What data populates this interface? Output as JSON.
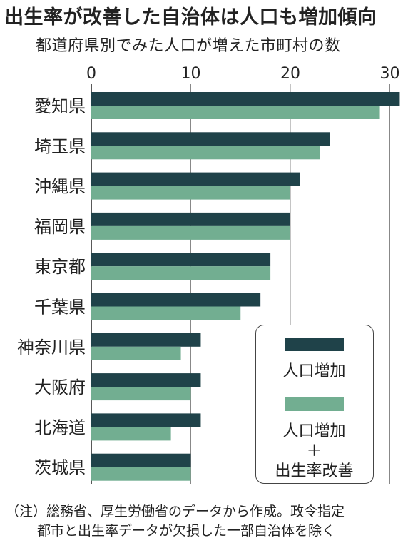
{
  "title": "出生率が改善した自治体は人口も増加傾向",
  "subtitle": "都道府県別でみた人口が増えた市町村の数",
  "note_line1": "（注）総務省、厚生労働省のデータから作成。政令指定",
  "note_line2": "都市と出生率データが欠損した一部自治体を除く",
  "colors": {
    "dark": "#1f4249",
    "green": "#72ae91",
    "grid": "#888888"
  },
  "legend": {
    "item1": "人口増加",
    "item2_line1": "人口増加",
    "item2_line2": "＋",
    "item2_line3": "出生率改善"
  },
  "chart_data": {
    "type": "bar",
    "orientation": "horizontal",
    "categories": [
      "愛知県",
      "埼玉県",
      "沖縄県",
      "福岡県",
      "東京都",
      "千葉県",
      "神奈川県",
      "大阪府",
      "北海道",
      "茨城県"
    ],
    "series": [
      {
        "name": "人口増加",
        "values": [
          31,
          24,
          21,
          20,
          18,
          17,
          11,
          11,
          11,
          10
        ]
      },
      {
        "name": "人口増加＋出生率改善",
        "values": [
          29,
          23,
          20,
          20,
          18,
          15,
          9,
          10,
          8,
          10
        ]
      }
    ],
    "x_ticks": [
      0,
      10,
      20,
      30
    ],
    "xlim": [
      0,
      31.5
    ],
    "grid": true,
    "legend_position": "bottom-right"
  }
}
